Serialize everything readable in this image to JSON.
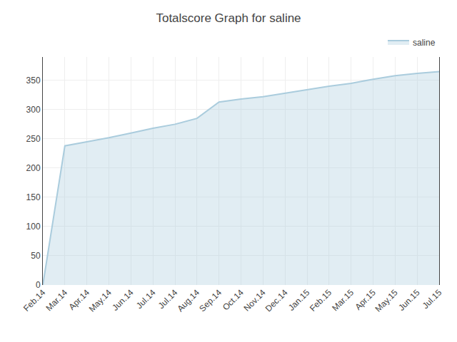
{
  "chart_data": {
    "type": "area",
    "title": "Totalscore Graph for saline",
    "categories": [
      "Feb.14",
      "Mar.14",
      "Apr.14",
      "May.14",
      "Jun.14",
      "Jul.14",
      "Jul.14",
      "Aug.14",
      "Sep.14",
      "Oct.14",
      "Nov.14",
      "Dec.14",
      "Jan.15",
      "Feb.15",
      "Mar.15",
      "Apr.15",
      "May.15",
      "Jun.15",
      "Jul.15"
    ],
    "series": [
      {
        "name": "saline",
        "color": "#aaccdd",
        "values": [
          0,
          238,
          245,
          252,
          260,
          268,
          275,
          285,
          313,
          318,
          322,
          328,
          334,
          340,
          345,
          352,
          358,
          362,
          365
        ]
      }
    ],
    "ylim": [
      0,
      390
    ],
    "yticks": [
      0,
      50,
      100,
      150,
      200,
      250,
      300,
      350
    ],
    "grid": true,
    "legend": "upper right"
  }
}
